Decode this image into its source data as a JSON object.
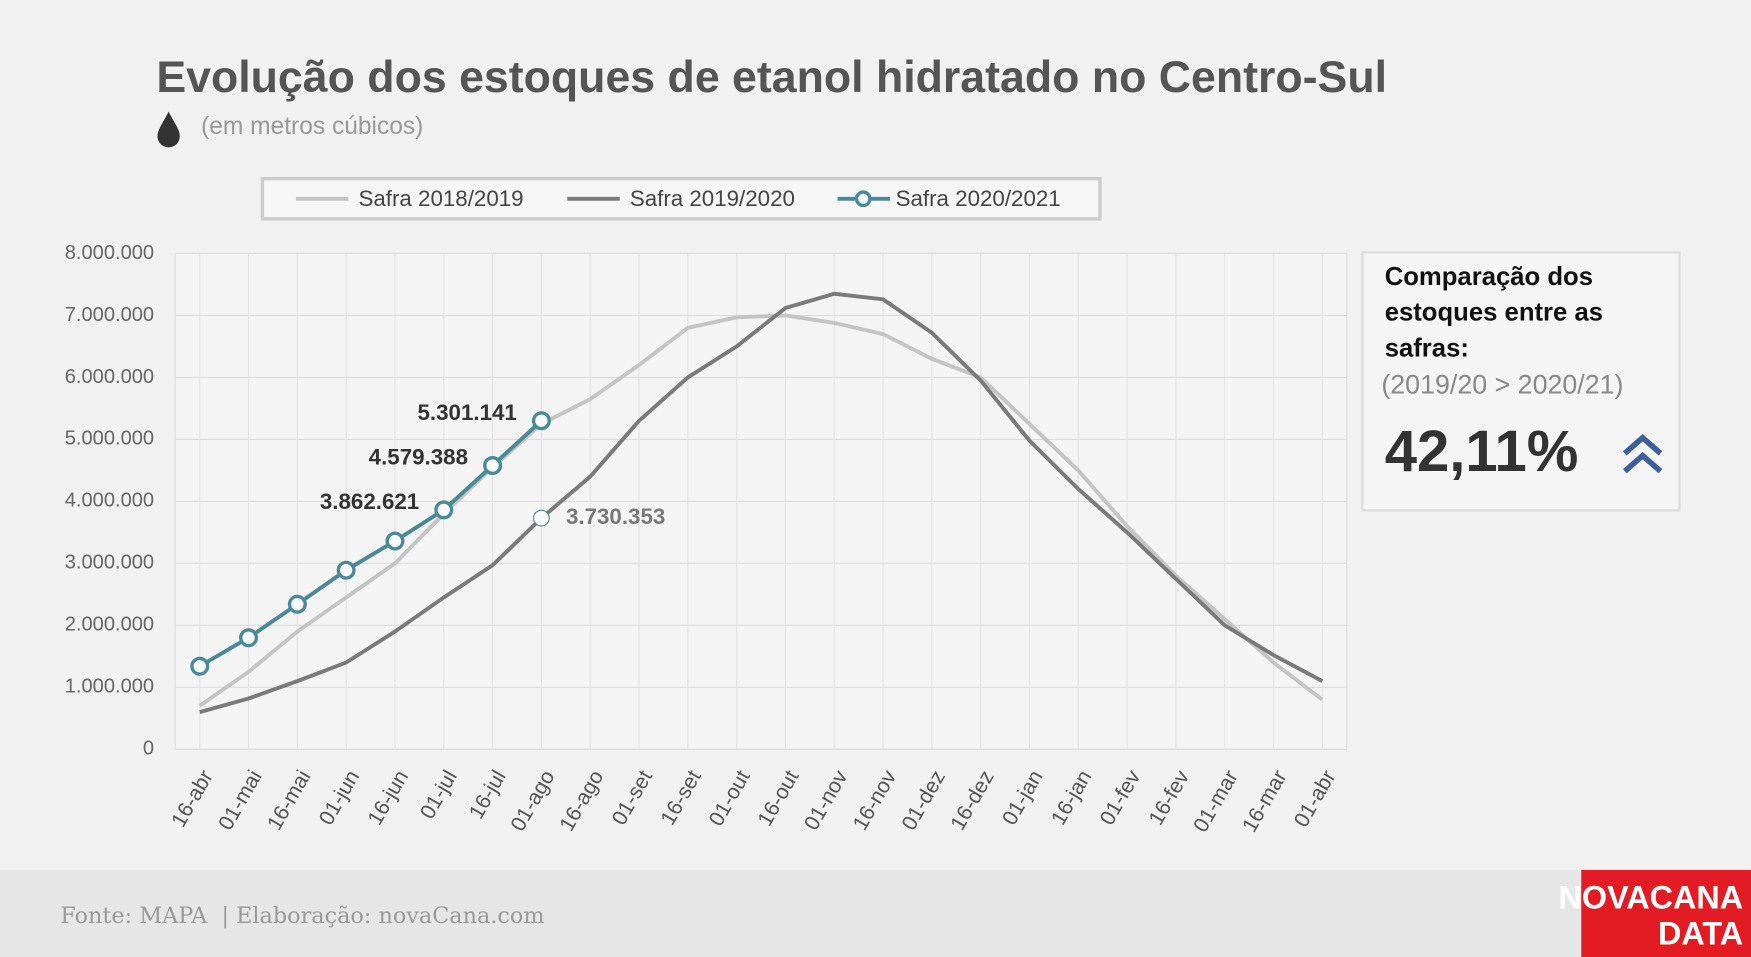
{
  "chart_data": {
    "type": "line",
    "title": "Evolução dos estoques de etanol hidratado no Centro-Sul",
    "subtitle": "(em metros cúbicos)",
    "categories": [
      "16-abr",
      "01-mai",
      "16-mai",
      "01-jun",
      "16-jun",
      "01-jul",
      "16-jul",
      "01-ago",
      "16-ago",
      "01-set",
      "16-set",
      "01-out",
      "16-out",
      "01-nov",
      "16-nov",
      "01-dez",
      "16-dez",
      "01-jan",
      "16-jan",
      "01-fev",
      "16-fev",
      "01-mar",
      "16-mar",
      "01-abr"
    ],
    "series": [
      {
        "name": "Safra 2018/2019",
        "color": "#c4c4c4",
        "values": [
          700000,
          1250000,
          1900000,
          2450000,
          3000000,
          3800000,
          4550000,
          5250000,
          5650000,
          6200000,
          6800000,
          6970000,
          7000000,
          6880000,
          6700000,
          6300000,
          6000000,
          5250000,
          4500000,
          3600000,
          2800000,
          2100000,
          1400000,
          800000
        ]
      },
      {
        "name": "Safra 2019/2020",
        "color": "#7a7a7a",
        "values": [
          600000,
          820000,
          1100000,
          1400000,
          1900000,
          2450000,
          2970000,
          3730353,
          4400000,
          5300000,
          6000000,
          6500000,
          7120000,
          7350000,
          7260000,
          6720000,
          5950000,
          4980000,
          4200000,
          3500000,
          2750000,
          2000000,
          1520000,
          1100000
        ],
        "value_labels": [
          null,
          null,
          null,
          null,
          null,
          null,
          null,
          "3.730.353",
          null,
          null,
          null,
          null,
          null,
          null,
          null,
          null,
          null,
          null,
          null,
          null,
          null,
          null,
          null,
          null
        ]
      },
      {
        "name": "Safra 2020/2021",
        "color": "#4a8a96",
        "values": [
          1340000,
          1800000,
          2340000,
          2890000,
          3360000,
          3862621,
          4579388,
          5301141,
          null,
          null,
          null,
          null,
          null,
          null,
          null,
          null,
          null,
          null,
          null,
          null,
          null,
          null,
          null,
          null
        ],
        "value_labels": [
          null,
          null,
          null,
          null,
          null,
          "3.862.621",
          "4.579.388",
          "5.301.141",
          null,
          null,
          null,
          null,
          null,
          null,
          null,
          null,
          null,
          null,
          null,
          null,
          null,
          null,
          null,
          null
        ]
      }
    ],
    "ylim": [
      0,
      8000000
    ],
    "yticks": [
      0,
      {
        "value": 1000000,
        "label": "1.000.000"
      },
      {
        "value": 2000000,
        "label": "2.000.000"
      },
      {
        "value": 3000000,
        "label": "3.000.000"
      },
      {
        "value": 4000000,
        "label": "4.000.000"
      },
      {
        "value": 5000000,
        "label": "5.000.000"
      },
      {
        "value": 6000000,
        "label": "6.000.000"
      },
      {
        "value": 7000000,
        "label": "7.000.000"
      },
      {
        "value": 8000000,
        "label": "8.000.000"
      }
    ],
    "grid": true,
    "panel": {
      "title_lines": [
        "Comparação dos",
        "estoques entre as",
        "safras:"
      ],
      "note": "(2019/20 > 2020/21)",
      "value": "42,11%"
    },
    "source": "Fonte: MAPA  | Elaboração: novaCana.com",
    "logo": [
      "NOVACANA",
      "DATA"
    ]
  }
}
